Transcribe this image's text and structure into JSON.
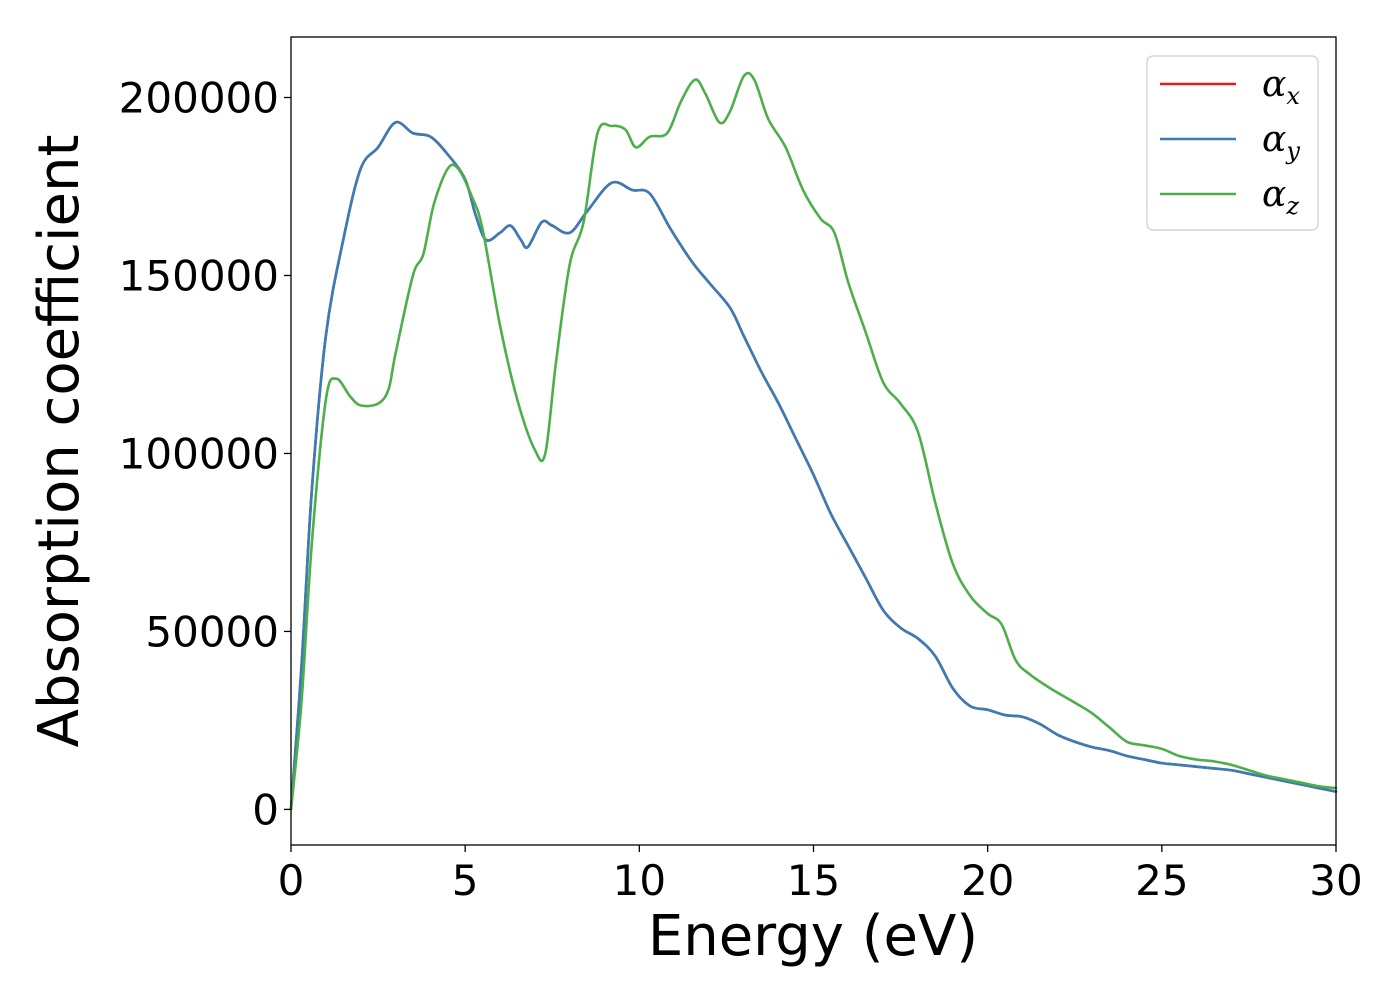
{
  "chart_data": {
    "type": "line",
    "xlabel": "Energy (eV)",
    "ylabel": "Absorption coefficient",
    "xlim": [
      0,
      30
    ],
    "ylim": [
      -10000,
      217000
    ],
    "xticks": [
      0,
      5,
      10,
      15,
      20,
      25,
      30
    ],
    "yticks": [
      0,
      50000,
      100000,
      150000,
      200000
    ],
    "grid": false,
    "legend_position": "top-right",
    "series": [
      {
        "name": "αx",
        "symbol": "α",
        "subscript": "x",
        "color": "#e41a1c",
        "points": [
          [
            0,
            0
          ],
          [
            0.3,
            40000
          ],
          [
            0.6,
            90000
          ],
          [
            1,
            133000
          ],
          [
            1.5,
            160000
          ],
          [
            2,
            180000
          ],
          [
            2.5,
            186000
          ],
          [
            3,
            193000
          ],
          [
            3.5,
            190000
          ],
          [
            4,
            189000
          ],
          [
            4.5,
            184000
          ],
          [
            5,
            177000
          ],
          [
            5.3,
            167000
          ],
          [
            5.6,
            160000
          ],
          [
            6,
            162000
          ],
          [
            6.3,
            164000
          ],
          [
            6.6,
            160000
          ],
          [
            6.8,
            158000
          ],
          [
            7.2,
            165000
          ],
          [
            7.5,
            164000
          ],
          [
            8,
            162000
          ],
          [
            8.5,
            168000
          ],
          [
            9.2,
            176000
          ],
          [
            9.8,
            174000
          ],
          [
            10.3,
            173000
          ],
          [
            10.9,
            163000
          ],
          [
            11.5,
            154000
          ],
          [
            12,
            148000
          ],
          [
            12.6,
            141000
          ],
          [
            13,
            133000
          ],
          [
            13.5,
            123000
          ],
          [
            14,
            114000
          ],
          [
            14.5,
            104000
          ],
          [
            15,
            94000
          ],
          [
            15.5,
            83000
          ],
          [
            16,
            74000
          ],
          [
            16.5,
            65000
          ],
          [
            17,
            56000
          ],
          [
            17.5,
            51000
          ],
          [
            18,
            48000
          ],
          [
            18.5,
            43000
          ],
          [
            19,
            34000
          ],
          [
            19.5,
            29000
          ],
          [
            20,
            28000
          ],
          [
            20.5,
            26500
          ],
          [
            21,
            26000
          ],
          [
            21.5,
            24000
          ],
          [
            22,
            21000
          ],
          [
            22.5,
            19000
          ],
          [
            23,
            17500
          ],
          [
            23.5,
            16500
          ],
          [
            24,
            15000
          ],
          [
            24.5,
            14000
          ],
          [
            25,
            13000
          ],
          [
            25.5,
            12500
          ],
          [
            26,
            12000
          ],
          [
            26.5,
            11500
          ],
          [
            27,
            11000
          ],
          [
            27.5,
            10000
          ],
          [
            28,
            9000
          ],
          [
            28.5,
            8000
          ],
          [
            29,
            7000
          ],
          [
            29.5,
            6000
          ],
          [
            30,
            5000
          ]
        ]
      },
      {
        "name": "αy",
        "symbol": "α",
        "subscript": "y",
        "color": "#377eb8",
        "points": [
          [
            0,
            0
          ],
          [
            0.3,
            40000
          ],
          [
            0.6,
            90000
          ],
          [
            1,
            133000
          ],
          [
            1.5,
            160000
          ],
          [
            2,
            180000
          ],
          [
            2.5,
            186000
          ],
          [
            3,
            193000
          ],
          [
            3.5,
            190000
          ],
          [
            4,
            189000
          ],
          [
            4.5,
            184000
          ],
          [
            5,
            177000
          ],
          [
            5.3,
            167000
          ],
          [
            5.6,
            160000
          ],
          [
            6,
            162000
          ],
          [
            6.3,
            164000
          ],
          [
            6.6,
            160000
          ],
          [
            6.8,
            158000
          ],
          [
            7.2,
            165000
          ],
          [
            7.5,
            164000
          ],
          [
            8,
            162000
          ],
          [
            8.5,
            168000
          ],
          [
            9.2,
            176000
          ],
          [
            9.8,
            174000
          ],
          [
            10.3,
            173000
          ],
          [
            10.9,
            163000
          ],
          [
            11.5,
            154000
          ],
          [
            12,
            148000
          ],
          [
            12.6,
            141000
          ],
          [
            13,
            133000
          ],
          [
            13.5,
            123000
          ],
          [
            14,
            114000
          ],
          [
            14.5,
            104000
          ],
          [
            15,
            94000
          ],
          [
            15.5,
            83000
          ],
          [
            16,
            74000
          ],
          [
            16.5,
            65000
          ],
          [
            17,
            56000
          ],
          [
            17.5,
            51000
          ],
          [
            18,
            48000
          ],
          [
            18.5,
            43000
          ],
          [
            19,
            34000
          ],
          [
            19.5,
            29000
          ],
          [
            20,
            28000
          ],
          [
            20.5,
            26500
          ],
          [
            21,
            26000
          ],
          [
            21.5,
            24000
          ],
          [
            22,
            21000
          ],
          [
            22.5,
            19000
          ],
          [
            23,
            17500
          ],
          [
            23.5,
            16500
          ],
          [
            24,
            15000
          ],
          [
            24.5,
            14000
          ],
          [
            25,
            13000
          ],
          [
            25.5,
            12500
          ],
          [
            26,
            12000
          ],
          [
            26.5,
            11500
          ],
          [
            27,
            11000
          ],
          [
            27.5,
            10000
          ],
          [
            28,
            9000
          ],
          [
            28.5,
            8000
          ],
          [
            29,
            7000
          ],
          [
            29.5,
            6000
          ],
          [
            30,
            5000
          ]
        ]
      },
      {
        "name": "αz",
        "symbol": "α",
        "subscript": "z",
        "color": "#4daf4a",
        "points": [
          [
            0,
            0
          ],
          [
            0.3,
            30000
          ],
          [
            0.6,
            75000
          ],
          [
            1,
            115000
          ],
          [
            1.3,
            121000
          ],
          [
            1.7,
            116000
          ],
          [
            2,
            113500
          ],
          [
            2.5,
            114000
          ],
          [
            2.8,
            118000
          ],
          [
            3,
            128000
          ],
          [
            3.5,
            150000
          ],
          [
            3.8,
            156000
          ],
          [
            4.1,
            170000
          ],
          [
            4.5,
            180000
          ],
          [
            4.8,
            180000
          ],
          [
            5.2,
            172000
          ],
          [
            5.5,
            163000
          ],
          [
            6,
            136000
          ],
          [
            6.5,
            115000
          ],
          [
            7,
            101000
          ],
          [
            7.3,
            100000
          ],
          [
            7.6,
            125000
          ],
          [
            8,
            153000
          ],
          [
            8.4,
            165000
          ],
          [
            8.8,
            190000
          ],
          [
            9.2,
            192000
          ],
          [
            9.6,
            191000
          ],
          [
            9.9,
            186000
          ],
          [
            10.3,
            189000
          ],
          [
            10.8,
            190000
          ],
          [
            11.2,
            199000
          ],
          [
            11.6,
            205000
          ],
          [
            11.9,
            201000
          ],
          [
            12.3,
            193000
          ],
          [
            12.6,
            196000
          ],
          [
            13,
            206000
          ],
          [
            13.3,
            205000
          ],
          [
            13.7,
            194000
          ],
          [
            14.2,
            186000
          ],
          [
            14.7,
            174000
          ],
          [
            15.2,
            166000
          ],
          [
            15.6,
            162000
          ],
          [
            16,
            148000
          ],
          [
            16.5,
            134000
          ],
          [
            17,
            120000
          ],
          [
            17.5,
            114000
          ],
          [
            18,
            106000
          ],
          [
            18.5,
            86000
          ],
          [
            19,
            69000
          ],
          [
            19.5,
            60000
          ],
          [
            20,
            55000
          ],
          [
            20.4,
            52000
          ],
          [
            20.8,
            42000
          ],
          [
            21.2,
            38000
          ],
          [
            21.8,
            34000
          ],
          [
            22.5,
            30000
          ],
          [
            23,
            27000
          ],
          [
            23.5,
            23000
          ],
          [
            24,
            19000
          ],
          [
            24.5,
            18000
          ],
          [
            25,
            17000
          ],
          [
            25.5,
            15000
          ],
          [
            26,
            14000
          ],
          [
            26.5,
            13500
          ],
          [
            27,
            12500
          ],
          [
            27.5,
            11000
          ],
          [
            28,
            9500
          ],
          [
            28.5,
            8500
          ],
          [
            29,
            7500
          ],
          [
            29.5,
            6500
          ],
          [
            30,
            6000
          ]
        ]
      }
    ]
  }
}
